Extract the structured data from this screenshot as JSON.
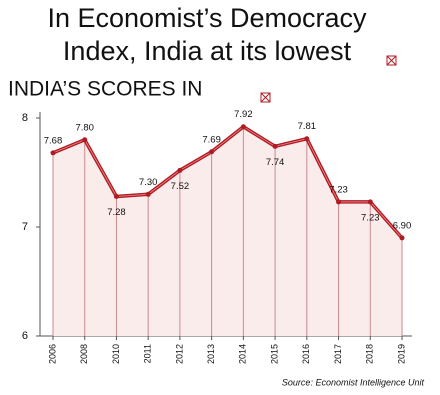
{
  "chart_data": {
    "type": "line",
    "title_lines": [
      "In Economist’s Democracy",
      "Index, India at its lowest"
    ],
    "subtitle": "INDIA’S SCORES IN",
    "categories": [
      "2006",
      "2008",
      "2010",
      "2011",
      "2012",
      "2013",
      "2014",
      "2015",
      "2016",
      "2017",
      "2018",
      "2019"
    ],
    "values": [
      7.68,
      7.8,
      7.28,
      7.3,
      7.52,
      7.69,
      7.92,
      7.74,
      7.81,
      7.23,
      7.23,
      6.9
    ],
    "value_labels": [
      "7.68",
      "7.80",
      "7.28",
      "7.30",
      "7.52",
      "7.69",
      "7.92",
      "7.74",
      "7.81",
      "7.23",
      "7.23",
      "6.90"
    ],
    "color": "#b01c24",
    "ylim": [
      6,
      8
    ],
    "yticks": [
      6,
      7,
      8
    ],
    "source": "Source: Economist Intelligence Unit"
  }
}
